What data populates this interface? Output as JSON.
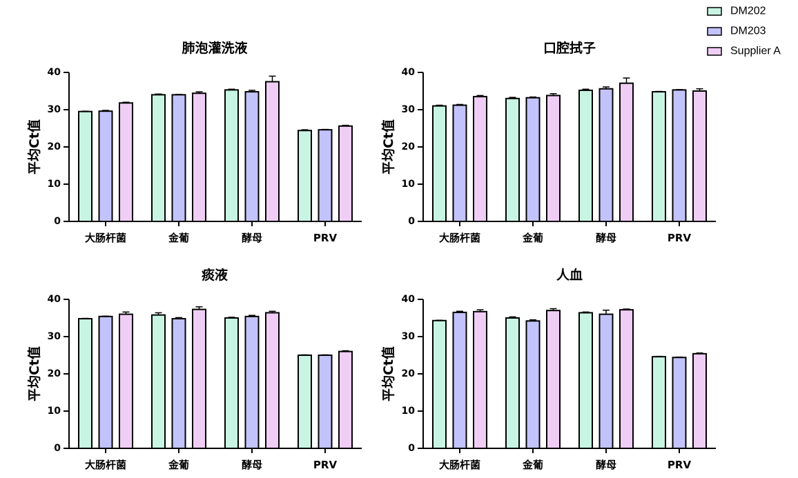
{
  "colors": {
    "DM202": "#c8f5e3",
    "DM203": "#c3c3fb",
    "Supplier A": "#f0cdf4"
  },
  "legend": [
    {
      "name": "DM202",
      "color": "#c8f5e3"
    },
    {
      "name": "DM203",
      "color": "#c3c3fb"
    },
    {
      "name": "Supplier A",
      "color": "#f0cdf4"
    }
  ],
  "chart_data": [
    {
      "type": "bar",
      "title": "肺泡灌洗液",
      "ylabel": "平均Ct值",
      "xlabel": "",
      "ylim": [
        0,
        40
      ],
      "yticks": [
        0,
        10,
        20,
        30,
        40
      ],
      "categories": [
        "大肠杆菌",
        "金葡",
        "酵母",
        "PRV"
      ],
      "series": [
        {
          "name": "DM202",
          "values": [
            29.5,
            34.0,
            35.3,
            24.4
          ],
          "errors": [
            0.1,
            0.2,
            0.2,
            0.2
          ]
        },
        {
          "name": "DM203",
          "values": [
            29.6,
            34.0,
            34.8,
            24.6
          ],
          "errors": [
            0.2,
            0.1,
            0.4,
            0.1
          ]
        },
        {
          "name": "Supplier A",
          "values": [
            31.8,
            34.4,
            37.5,
            25.6
          ],
          "errors": [
            0.2,
            0.4,
            1.5,
            0.2
          ]
        }
      ]
    },
    {
      "type": "bar",
      "title": "口腔拭子",
      "ylabel": "平均Ct值",
      "xlabel": "",
      "ylim": [
        0,
        40
      ],
      "yticks": [
        0,
        10,
        20,
        30,
        40
      ],
      "categories": [
        "大肠杆菌",
        "金葡",
        "酵母",
        "PRV"
      ],
      "series": [
        {
          "name": "DM202",
          "values": [
            31.0,
            33.0,
            35.2,
            34.8
          ],
          "errors": [
            0.2,
            0.3,
            0.3,
            0.1
          ]
        },
        {
          "name": "DM203",
          "values": [
            31.2,
            33.2,
            35.6,
            35.3
          ],
          "errors": [
            0.2,
            0.2,
            0.5,
            0.1
          ]
        },
        {
          "name": "Supplier A",
          "values": [
            33.5,
            33.8,
            37.1,
            35.0
          ],
          "errors": [
            0.3,
            0.5,
            1.4,
            0.6
          ]
        }
      ]
    },
    {
      "type": "bar",
      "title": "痰液",
      "ylabel": "平均Ct值",
      "xlabel": "",
      "ylim": [
        0,
        40
      ],
      "yticks": [
        0,
        10,
        20,
        30,
        40
      ],
      "categories": [
        "大肠杆菌",
        "金葡",
        "酵母",
        "PRV"
      ],
      "series": [
        {
          "name": "DM202",
          "values": [
            34.8,
            35.8,
            35.0,
            25.0
          ],
          "errors": [
            0.1,
            0.6,
            0.2,
            0.1
          ]
        },
        {
          "name": "DM203",
          "values": [
            35.4,
            34.8,
            35.4,
            25.0
          ],
          "errors": [
            0.1,
            0.3,
            0.3,
            0.1
          ]
        },
        {
          "name": "Supplier A",
          "values": [
            36.0,
            37.3,
            36.4,
            26.0
          ],
          "errors": [
            0.6,
            0.7,
            0.4,
            0.2
          ]
        }
      ]
    },
    {
      "type": "bar",
      "title": "人血",
      "ylabel": "平均Ct值",
      "xlabel": "",
      "ylim": [
        0,
        40
      ],
      "yticks": [
        0,
        10,
        20,
        30,
        40
      ],
      "categories": [
        "大肠杆菌",
        "金葡",
        "酵母",
        "PRV"
      ],
      "series": [
        {
          "name": "DM202",
          "values": [
            34.3,
            35.0,
            36.4,
            24.6
          ],
          "errors": [
            0.1,
            0.3,
            0.2,
            0.1
          ]
        },
        {
          "name": "DM203",
          "values": [
            36.5,
            34.2,
            36.0,
            24.4
          ],
          "errors": [
            0.3,
            0.3,
            1.1,
            0.1
          ]
        },
        {
          "name": "Supplier A",
          "values": [
            36.7,
            37.0,
            37.2,
            25.4
          ],
          "errors": [
            0.5,
            0.5,
            0.2,
            0.2
          ]
        }
      ]
    }
  ]
}
